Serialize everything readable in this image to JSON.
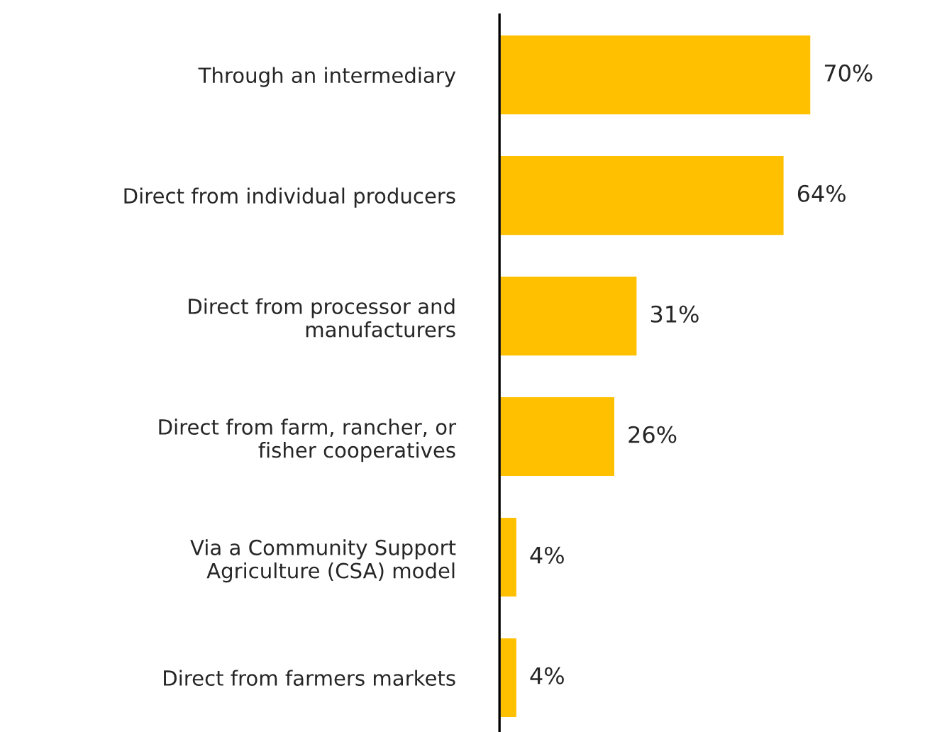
{
  "chart_data": {
    "type": "bar",
    "orientation": "horizontal",
    "categories": [
      "Through an intermediary",
      "Direct from individual producers",
      "Direct from processor and\nmanufacturers",
      "Direct from farm, rancher, or\nfisher cooperatives",
      "Via a Community Support\nAgriculture (CSA) model",
      "Direct from farmers markets"
    ],
    "values": [
      70,
      64,
      31,
      26,
      4,
      4
    ],
    "value_labels": [
      "70%",
      "64%",
      "31%",
      "26%",
      "4%",
      "4%"
    ],
    "color": "#ffc000",
    "grid": false,
    "legend": false
  }
}
